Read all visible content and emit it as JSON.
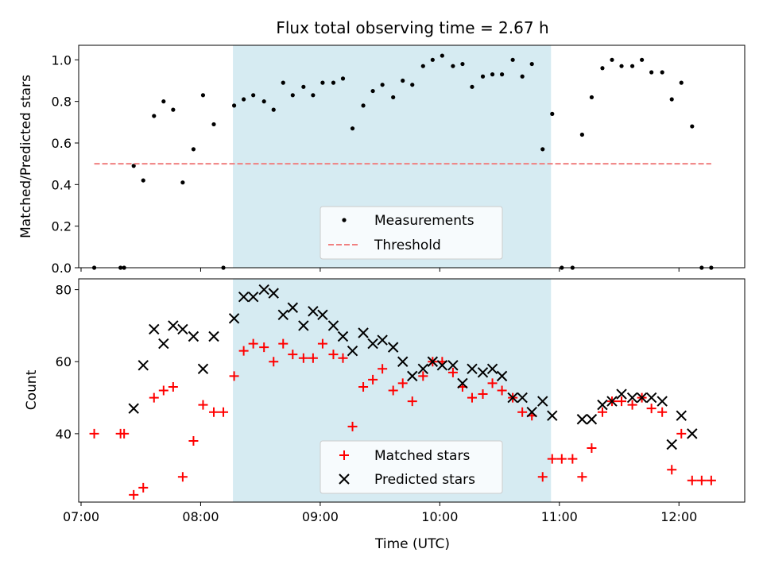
{
  "chart_data": [
    {
      "type": "scatter",
      "title": "Flux total observing time = 2.67 h",
      "xlabel": "",
      "ylabel": "Matched/Predicted stars",
      "xlim": [
        6.98,
        12.55
      ],
      "ylim": [
        0.0,
        1.07
      ],
      "yticks": [
        "0.0",
        "0.2",
        "0.4",
        "0.6",
        "0.8",
        "1.0"
      ],
      "shaded_interval": [
        8.27,
        10.93
      ],
      "series": [
        {
          "name": "Measurements",
          "marker": "dot",
          "color": "#000000",
          "x": [
            7.11,
            7.33,
            7.36,
            7.44,
            7.52,
            7.61,
            7.69,
            7.77,
            7.85,
            7.94,
            8.02,
            8.11,
            8.19,
            8.28,
            8.36,
            8.44,
            8.53,
            8.61,
            8.69,
            8.77,
            8.86,
            8.94,
            9.02,
            9.11,
            9.19,
            9.27,
            9.36,
            9.44,
            9.52,
            9.61,
            9.69,
            9.77,
            9.86,
            9.94,
            10.02,
            10.11,
            10.19,
            10.27,
            10.36,
            10.44,
            10.52,
            10.61,
            10.69,
            10.77,
            10.86,
            10.94,
            11.02,
            11.11,
            11.19,
            11.27,
            11.36,
            11.44,
            11.52,
            11.61,
            11.69,
            11.77,
            11.86,
            11.94,
            12.02,
            12.11,
            12.19,
            12.27
          ],
          "y": [
            0.0,
            0.0,
            0.0,
            0.49,
            0.42,
            0.73,
            0.8,
            0.76,
            0.41,
            0.57,
            0.83,
            0.69,
            0.0,
            0.78,
            0.81,
            0.83,
            0.8,
            0.76,
            0.89,
            0.83,
            0.87,
            0.83,
            0.89,
            0.89,
            0.91,
            0.67,
            0.78,
            0.85,
            0.88,
            0.82,
            0.9,
            0.88,
            0.97,
            1.0,
            1.02,
            0.97,
            0.98,
            0.87,
            0.92,
            0.93,
            0.93,
            1.0,
            0.92,
            0.98,
            0.57,
            0.74,
            0.0,
            0.0,
            0.64,
            0.82,
            0.96,
            1.0,
            0.97,
            0.97,
            1.0,
            0.94,
            0.94,
            0.81,
            0.89,
            0.68,
            0.0,
            0.0
          ]
        },
        {
          "name": "Threshold",
          "style": "dashed",
          "color": "#f08080",
          "x": [
            7.11,
            12.27
          ],
          "y": [
            0.5,
            0.5
          ]
        }
      ]
    },
    {
      "type": "scatter",
      "title": "",
      "xlabel": "Time (UTC)",
      "ylabel": "Count",
      "xlim": [
        6.98,
        12.55
      ],
      "ylim": [
        21,
        83
      ],
      "yticks": [
        "40",
        "60",
        "80"
      ],
      "xticks": [
        "07:00",
        "08:00",
        "09:00",
        "10:00",
        "11:00",
        "12:00"
      ],
      "shaded_interval": [
        8.27,
        10.93
      ],
      "series": [
        {
          "name": "Matched stars",
          "marker": "plus",
          "color": "#ff0000",
          "x": [
            7.11,
            7.33,
            7.36,
            7.44,
            7.52,
            7.61,
            7.69,
            7.77,
            7.85,
            7.94,
            8.02,
            8.11,
            8.19,
            8.28,
            8.36,
            8.44,
            8.53,
            8.61,
            8.69,
            8.77,
            8.86,
            8.94,
            9.02,
            9.11,
            9.19,
            9.27,
            9.36,
            9.44,
            9.52,
            9.61,
            9.69,
            9.77,
            9.86,
            9.94,
            10.02,
            10.11,
            10.19,
            10.27,
            10.36,
            10.44,
            10.52,
            10.61,
            10.69,
            10.77,
            10.86,
            10.94,
            11.02,
            11.11,
            11.19,
            11.27,
            11.36,
            11.44,
            11.52,
            11.61,
            11.69,
            11.77,
            11.86,
            11.94,
            12.02,
            12.11,
            12.19,
            12.27
          ],
          "y": [
            40,
            40,
            40,
            23,
            25,
            50,
            52,
            53,
            28,
            38,
            48,
            46,
            46,
            56,
            63,
            65,
            64,
            60,
            65,
            62,
            61,
            61,
            65,
            62,
            61,
            42,
            53,
            55,
            58,
            52,
            54,
            49,
            56,
            60,
            60,
            57,
            53,
            50,
            51,
            54,
            52,
            50,
            46,
            45,
            28,
            33,
            33,
            33,
            28,
            36,
            46,
            49,
            49,
            48,
            50,
            47,
            46,
            30,
            40,
            27,
            27,
            27
          ]
        },
        {
          "name": "Predicted stars",
          "marker": "x",
          "color": "#000000",
          "x": [
            7.44,
            7.52,
            7.61,
            7.69,
            7.77,
            7.85,
            7.94,
            8.02,
            8.11,
            8.28,
            8.36,
            8.44,
            8.53,
            8.61,
            8.69,
            8.77,
            8.86,
            8.94,
            9.02,
            9.11,
            9.19,
            9.27,
            9.36,
            9.44,
            9.52,
            9.61,
            9.69,
            9.77,
            9.86,
            9.94,
            10.02,
            10.11,
            10.19,
            10.27,
            10.36,
            10.44,
            10.52,
            10.61,
            10.69,
            10.77,
            10.86,
            10.94,
            11.19,
            11.27,
            11.36,
            11.44,
            11.52,
            11.61,
            11.69,
            11.77,
            11.86,
            11.94,
            12.02,
            12.11
          ],
          "y": [
            47,
            59,
            69,
            65,
            70,
            69,
            67,
            58,
            67,
            72,
            78,
            78,
            80,
            79,
            73,
            75,
            70,
            74,
            73,
            70,
            67,
            63,
            68,
            65,
            66,
            64,
            60,
            56,
            58,
            60,
            59,
            59,
            54,
            58,
            57,
            58,
            56,
            50,
            50,
            46,
            49,
            45,
            44,
            44,
            48,
            49,
            51,
            50,
            50,
            50,
            49,
            37,
            45,
            40
          ]
        }
      ]
    }
  ]
}
